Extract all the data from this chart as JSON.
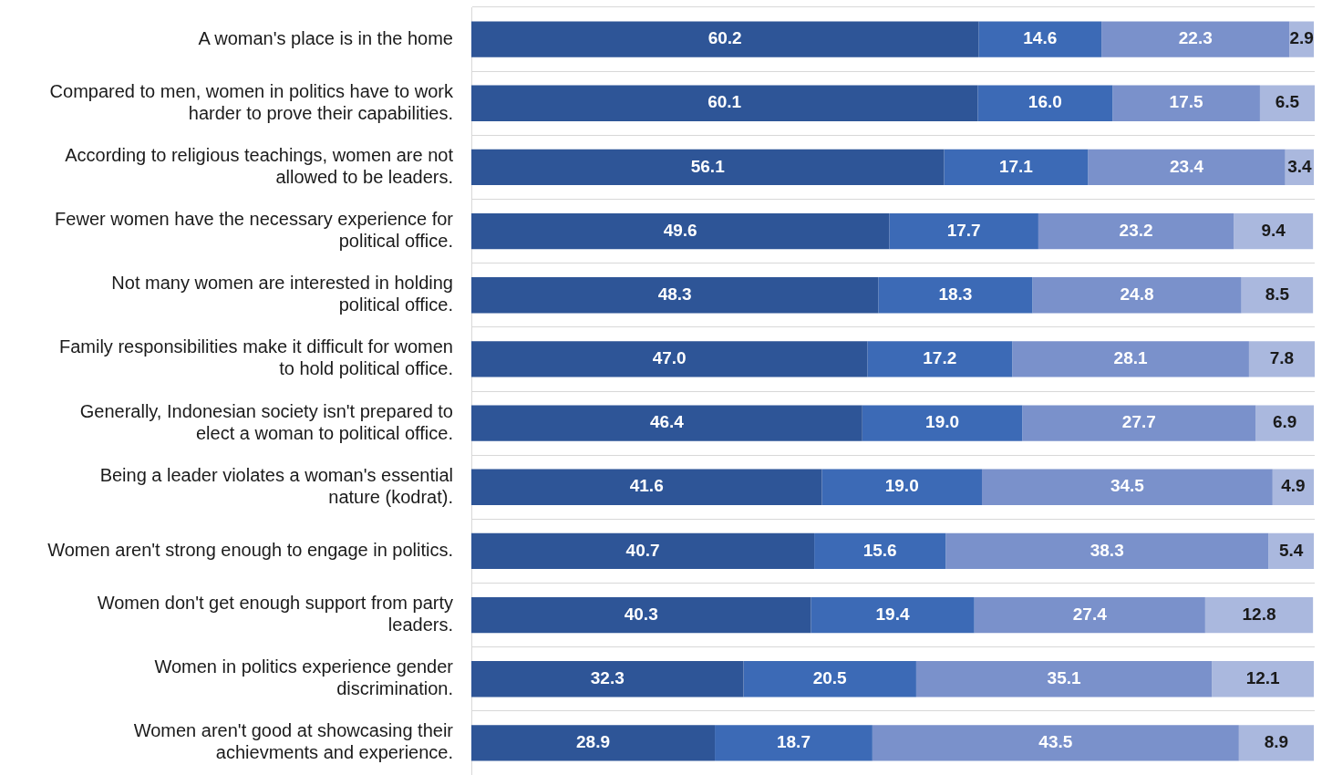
{
  "chart_data": {
    "type": "bar",
    "orientation": "horizontal",
    "stacked": true,
    "grid": "y",
    "legend": false,
    "tick_labels": "y",
    "categories": [
      "A woman's place is in the home",
      "Compared to men, women in politics have to work harder to prove their capabilities.",
      "According to religious teachings, women are not allowed to be leaders.",
      "Fewer women have the necessary experience for political office.",
      "Not many women are interested in holding political office.",
      "Family responsibilities make it difficult for women to hold political office.",
      "Generally, Indonesian society isn't prepared to elect a woman to political office.",
      "Being a leader violates a woman's essential nature (kodrat).",
      "Women aren't strong enough to engage in politics.",
      "Women don't get enough support from party leaders.",
      "Women in politics experience gender discrimination.",
      "Women aren't good at showcasing their achievments and experience."
    ],
    "series": [
      {
        "color": "#2e5597",
        "values": [
          60.2,
          60.1,
          56.1,
          49.6,
          48.3,
          47.0,
          46.4,
          41.6,
          40.7,
          40.3,
          32.3,
          28.9
        ],
        "value_labels": [
          "60.2",
          "60.1",
          "56.1",
          "49.6",
          "48.3",
          "47.0",
          "46.4",
          "41.6",
          "40.7",
          "40.3",
          "32.3",
          "28.9"
        ]
      },
      {
        "color": "#3c6ab6",
        "values": [
          14.6,
          16.0,
          17.1,
          17.7,
          18.3,
          17.2,
          19.0,
          19.0,
          15.6,
          19.4,
          20.5,
          18.7
        ],
        "value_labels": [
          "14.6",
          "16.0",
          "17.1",
          "17.7",
          "18.3",
          "17.2",
          "19.0",
          "19.0",
          "15.6",
          "19.4",
          "20.5",
          "18.7"
        ]
      },
      {
        "color": "#7a91cb",
        "values": [
          22.3,
          17.5,
          23.4,
          23.2,
          24.8,
          28.1,
          27.7,
          34.5,
          38.3,
          27.4,
          35.1,
          43.5
        ],
        "value_labels": [
          "22.3",
          "17.5",
          "23.4",
          "23.2",
          "24.8",
          "28.1",
          "27.7",
          "34.5",
          "38.3",
          "27.4",
          "35.1",
          "43.5"
        ]
      },
      {
        "color": "#aab8de",
        "values": [
          2.9,
          6.5,
          3.4,
          9.4,
          8.5,
          7.8,
          6.9,
          4.9,
          5.4,
          12.8,
          12.1,
          8.9
        ],
        "value_labels": [
          "2.9",
          "6.5",
          "3.4",
          "9.4",
          "8.5",
          "7.8",
          "6.9",
          "4.9",
          "5.4",
          "12.8",
          "12.1",
          "8.9"
        ]
      }
    ]
  }
}
